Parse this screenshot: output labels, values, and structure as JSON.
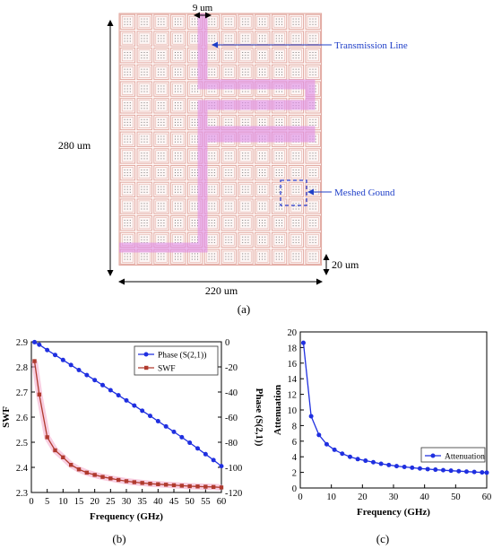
{
  "panel_a": {
    "label": "(a)",
    "dim_top": "9 um",
    "dim_left": "280 um",
    "dim_bottom": "220 um",
    "dim_right": "20 um",
    "annotation_line": "Transmission Line",
    "annotation_mesh": "Meshed Gound",
    "colors": {
      "mesh": "#e0a39a",
      "trace": "#e08ce8",
      "annotation": "#1f3fc8"
    }
  },
  "panel_b": {
    "label": "(b)"
  },
  "panel_c": {
    "label": "(c)"
  },
  "chart_data": [
    {
      "type": "line",
      "panel": "b",
      "xlabel": "Frequency (GHz)",
      "ylabel": "SWF",
      "ylabel_right": "Phase (S(2,1))",
      "xlim": [
        0,
        60
      ],
      "ylim": [
        2.3,
        2.9
      ],
      "ylim_right": [
        -120,
        0
      ],
      "x_ticks": [
        "0",
        "5",
        "10",
        "15",
        "20",
        "25",
        "30",
        "35",
        "40",
        "45",
        "50",
        "55",
        "60"
      ],
      "y_ticks": [
        "2.3",
        "2.4",
        "2.5",
        "2.6",
        "2.7",
        "2.8",
        "2.9"
      ],
      "y_ticks_right": [
        "0",
        "-20",
        "-40",
        "-60",
        "-80",
        "-100",
        "-120"
      ],
      "legend_position": "top-right",
      "x": [
        1,
        2.5,
        5,
        7.5,
        10,
        12.5,
        15,
        17.5,
        20,
        22.5,
        25,
        27.5,
        30,
        32.5,
        35,
        37.5,
        40,
        42.5,
        45,
        47.5,
        50,
        52.5,
        55,
        57.5,
        60
      ],
      "series": [
        {
          "name": "Phase (S(2,1))",
          "axis": "right",
          "color": "#1f2fe0",
          "marker": "circle",
          "values": [
            -0.3,
            -2.3,
            -6.6,
            -10.5,
            -14.5,
            -18.5,
            -22.5,
            -26.5,
            -30.5,
            -34.5,
            -38.6,
            -42.6,
            -46.7,
            -50.8,
            -54.9,
            -59.0,
            -63.2,
            -67.4,
            -71.7,
            -76.0,
            -80.4,
            -84.9,
            -89.5,
            -94.2,
            -99.0
          ]
        },
        {
          "name": "SWF",
          "axis": "left",
          "color": "#b03a2e",
          "marker": "square",
          "values": [
            2.823,
            2.69,
            2.52,
            2.468,
            2.44,
            2.41,
            2.392,
            2.379,
            2.37,
            2.362,
            2.356,
            2.35,
            2.345,
            2.341,
            2.338,
            2.335,
            2.333,
            2.331,
            2.329,
            2.327,
            2.325,
            2.324,
            2.323,
            2.322,
            2.32
          ]
        }
      ]
    },
    {
      "type": "line",
      "panel": "c",
      "xlabel": "Frequency (GHz)",
      "ylabel": "Attenuation",
      "xlim": [
        0,
        60
      ],
      "ylim": [
        0,
        20
      ],
      "x_ticks": [
        "0",
        "10",
        "20",
        "30",
        "40",
        "50",
        "60"
      ],
      "y_ticks": [
        "0",
        "2",
        "4",
        "6",
        "8",
        "10",
        "12",
        "14",
        "16",
        "18",
        "20"
      ],
      "legend_position": "right",
      "x": [
        1,
        3.5,
        6,
        8.5,
        11,
        13.5,
        16,
        18.5,
        21,
        23.5,
        26,
        28.5,
        31,
        33.5,
        36,
        38.5,
        41,
        43.5,
        46,
        48.5,
        51,
        53.5,
        56,
        58.5,
        60
      ],
      "series": [
        {
          "name": "Attenuation",
          "color": "#1f2fe0",
          "marker": "circle",
          "values": [
            18.6,
            9.2,
            6.8,
            5.6,
            4.9,
            4.4,
            4.0,
            3.7,
            3.5,
            3.3,
            3.1,
            2.95,
            2.8,
            2.7,
            2.6,
            2.5,
            2.42,
            2.35,
            2.28,
            2.22,
            2.16,
            2.1,
            2.05,
            2.0,
            1.97
          ]
        }
      ]
    }
  ]
}
